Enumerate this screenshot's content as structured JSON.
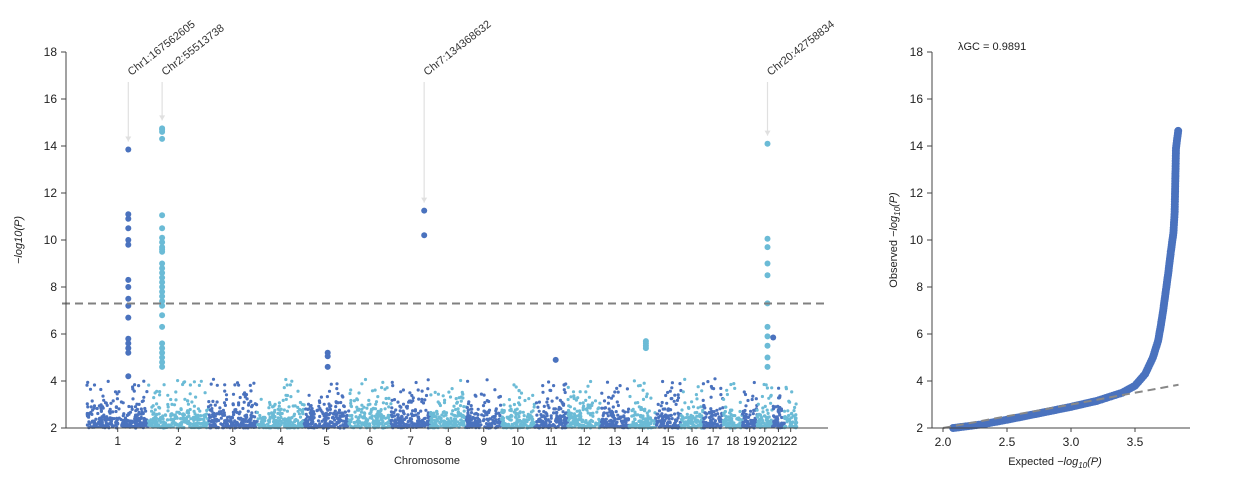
{
  "chart_data": [
    {
      "type": "scatter",
      "subtype": "manhattan",
      "xlabel": "Chromosome",
      "ylabel": "−log10(P)",
      "ylim": [
        2,
        18
      ],
      "yticks": [
        2,
        4,
        6,
        8,
        10,
        12,
        14,
        16,
        18
      ],
      "grid": false,
      "colors": {
        "odd": "#4a72be",
        "even": "#6bbbd6",
        "threshold": "#808080",
        "annotation": "#e0e0e0"
      },
      "significance_threshold": 7.3,
      "chromosomes": [
        "1",
        "2",
        "3",
        "4",
        "5",
        "6",
        "7",
        "8",
        "9",
        "10",
        "11",
        "12",
        "13",
        "14",
        "15",
        "16",
        "17",
        "18",
        "19",
        "20",
        "21",
        "22"
      ],
      "chromosome_lengths_mb": [
        249.3,
        243.2,
        198.0,
        191.2,
        180.9,
        171.1,
        159.1,
        146.4,
        141.2,
        135.5,
        135.0,
        133.9,
        115.2,
        107.3,
        102.5,
        90.4,
        81.2,
        78.1,
        59.1,
        63.0,
        48.1,
        51.3
      ],
      "background_range": [
        2,
        4
      ],
      "highlighted_points": [
        {
          "chr": 1,
          "pos_mb": 167.56,
          "y": [
            13.85,
            11.1,
            10.9,
            10.5,
            10.0,
            9.8,
            8.3,
            8.0,
            7.5,
            7.2,
            6.7,
            5.8,
            5.6,
            5.4,
            5.2,
            4.2
          ]
        },
        {
          "chr": 2,
          "pos_mb": 55.51,
          "y": [
            14.75,
            14.7,
            14.6,
            14.3,
            11.05,
            10.5,
            10.1,
            9.9,
            9.7,
            9.6,
            9.5,
            9.0,
            8.8,
            8.6,
            8.4,
            8.2,
            8.0,
            7.8,
            7.6,
            7.4,
            7.2,
            6.8,
            6.3,
            5.6,
            5.4,
            5.2,
            5.0,
            4.8,
            4.6
          ]
        },
        {
          "chr": 5,
          "pos_mb": 95.0,
          "y": [
            5.2,
            5.05,
            4.6
          ]
        },
        {
          "chr": 7,
          "pos_mb": 134.37,
          "y": [
            11.25,
            10.2
          ]
        },
        {
          "chr": 11,
          "pos_mb": 86.0,
          "y": [
            4.9
          ]
        },
        {
          "chr": 14,
          "pos_mb": 68.0,
          "y": [
            5.7,
            5.6,
            5.5,
            5.4
          ]
        },
        {
          "chr": 20,
          "pos_mb": 42.76,
          "y": [
            14.1,
            10.05,
            9.7,
            9.0,
            8.5,
            7.3,
            6.3,
            5.9,
            5.5,
            5.0,
            4.6
          ]
        },
        {
          "chr": 21,
          "pos_mb": 3.0,
          "y": [
            5.85
          ]
        }
      ],
      "annotations": [
        {
          "label": "Chr1:167562605",
          "chr": 1,
          "pos_mb": 167.56,
          "y": 13.85
        },
        {
          "label": "Chr2:55513738",
          "chr": 2,
          "pos_mb": 55.51,
          "y": 14.75
        },
        {
          "label": "Chr7:134368632",
          "chr": 7,
          "pos_mb": 134.37,
          "y": 11.25
        },
        {
          "label": "Chr20:42758834",
          "chr": 20,
          "pos_mb": 42.76,
          "y": 14.1
        }
      ]
    },
    {
      "type": "scatter",
      "subtype": "qq",
      "xlabel": "Expected −log10(P)",
      "ylabel": "Observed −log10(P)",
      "xlim": [
        1.9,
        3.95
      ],
      "ylim": [
        2,
        18
      ],
      "xticks": [
        "2.0",
        "2.5",
        "3.0",
        "3.5"
      ],
      "yticks": [
        2,
        4,
        6,
        8,
        10,
        12,
        14,
        16,
        18
      ],
      "annotation": "λGC = 0.9891",
      "lambda_gc": "0.9891",
      "color": "#4a72be",
      "reference_line": "y = x (dashed)",
      "curve": [
        [
          2.08,
          2.0
        ],
        [
          2.3,
          2.15
        ],
        [
          2.5,
          2.35
        ],
        [
          2.8,
          2.68
        ],
        [
          3.0,
          2.9
        ],
        [
          3.2,
          3.15
        ],
        [
          3.4,
          3.5
        ],
        [
          3.5,
          3.8
        ],
        [
          3.58,
          4.3
        ],
        [
          3.64,
          5.0
        ],
        [
          3.68,
          5.7
        ],
        [
          3.7,
          6.3
        ],
        [
          3.72,
          7.0
        ],
        [
          3.74,
          7.8
        ],
        [
          3.76,
          8.6
        ],
        [
          3.78,
          9.5
        ],
        [
          3.8,
          10.3
        ],
        [
          3.81,
          11.2
        ],
        [
          3.82,
          13.9
        ],
        [
          3.84,
          14.75
        ]
      ]
    }
  ]
}
